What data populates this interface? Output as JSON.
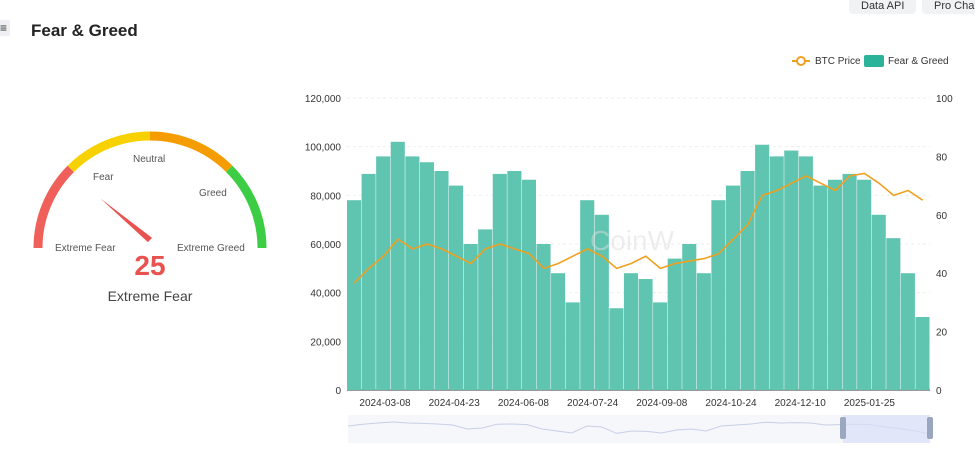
{
  "header": {
    "title": "Fear & Greed",
    "menu_icon": "≡",
    "buttons": [
      "Data API",
      "Pro Chart"
    ]
  },
  "gauge": {
    "value": 25,
    "label": "Extreme Fear",
    "zones": [
      "Extreme Fear",
      "Fear",
      "Neutral",
      "Greed",
      "Extreme Greed"
    ],
    "colors": [
      "#f0605a",
      "#f8d200",
      "#f59c00",
      "#3ccd44"
    ]
  },
  "chart_data": {
    "type": "bar+line",
    "legend": [
      "BTC Price",
      "Fear & Greed"
    ],
    "legend_position": "top-right",
    "x_tick_labels": [
      "2024-03-08",
      "2024-04-23",
      "2024-06-08",
      "2024-07-24",
      "2024-09-08",
      "2024-10-24",
      "2024-12-10",
      "2025-01-25"
    ],
    "y_left": {
      "ticks": [
        "0",
        "20,000",
        "40,000",
        "60,000",
        "80,000",
        "100,000",
        "120,000"
      ],
      "range": [
        0,
        120000
      ]
    },
    "y_right": {
      "ticks": [
        "0",
        "20",
        "40",
        "60",
        "80",
        "100"
      ],
      "range": [
        0,
        100
      ]
    },
    "x_start": "2024-02-12",
    "x_step_days": 10,
    "series": [
      {
        "name": "Fear & Greed",
        "type": "bar",
        "color": "#5fc4b0",
        "values": [
          65,
          74,
          80,
          85,
          80,
          78,
          75,
          70,
          50,
          55,
          74,
          75,
          72,
          50,
          40,
          30,
          65,
          60,
          28,
          40,
          38,
          30,
          45,
          50,
          40,
          65,
          70,
          75,
          84,
          80,
          82,
          80,
          70,
          72,
          74,
          72,
          60,
          52,
          40,
          25
        ]
      },
      {
        "name": "BTC Price",
        "type": "line",
        "color": "#f0a020",
        "values": [
          44000,
          50000,
          55000,
          62000,
          58000,
          60000,
          58000,
          55000,
          52000,
          58000,
          60000,
          58000,
          56000,
          50000,
          52000,
          55000,
          58000,
          55000,
          50000,
          52000,
          55000,
          50000,
          52000,
          53000,
          54000,
          56000,
          62000,
          68000,
          80000,
          82000,
          85000,
          88000,
          85000,
          82000,
          88000,
          89000,
          85000,
          80000,
          82000,
          78000
        ]
      }
    ]
  },
  "watermark": "CoinW"
}
